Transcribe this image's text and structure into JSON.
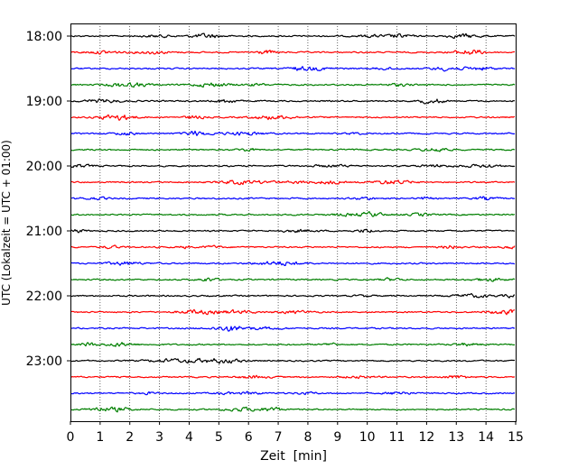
{
  "chart_data": {
    "type": "line",
    "subtype": "helicorder-seismogram",
    "xlabel": "Zeit  [min]",
    "ylabel": "UTC (Lokalzeit = UTC + 01:00)",
    "x_ticks": [
      "0",
      "1",
      "2",
      "3",
      "4",
      "5",
      "6",
      "7",
      "8",
      "9",
      "10",
      "11",
      "12",
      "13",
      "14",
      "15"
    ],
    "xlim": [
      0,
      15
    ],
    "y_ticks": [
      "18:00",
      "19:00",
      "20:00",
      "21:00",
      "22:00",
      "23:00"
    ],
    "trace_interval_min": 15,
    "trace_count": 24,
    "trace_colors": [
      "#000000",
      "#ff0000",
      "#0000ff",
      "#007f00"
    ],
    "grid": "vertical dotted",
    "legend": "none"
  }
}
